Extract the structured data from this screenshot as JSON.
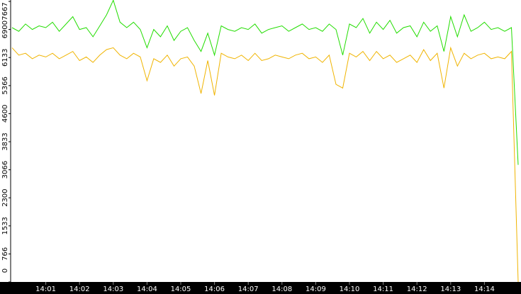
{
  "chart_data": {
    "type": "line",
    "categories": [
      null,
      null,
      null,
      null,
      null,
      "14:01",
      null,
      null,
      null,
      null,
      "14:02",
      null,
      null,
      null,
      null,
      "14:03",
      null,
      null,
      null,
      null,
      "14:04",
      null,
      null,
      null,
      null,
      "14:05",
      null,
      null,
      null,
      null,
      "14:06",
      null,
      null,
      null,
      null,
      "14:07",
      null,
      null,
      null,
      null,
      "14:08",
      null,
      null,
      null,
      null,
      "14:09",
      null,
      null,
      null,
      null,
      "14:10",
      null,
      null,
      null,
      null,
      "14:11",
      null,
      null,
      null,
      null,
      "14:12",
      null,
      null,
      null,
      null,
      "14:13",
      null,
      null,
      null,
      null,
      "14:14",
      null,
      null,
      null,
      null,
      null
    ],
    "series": [
      {
        "color": "#22dd00",
        "values": [
          6950,
          6850,
          7050,
          6900,
          7000,
          6950,
          7100,
          6850,
          7050,
          7250,
          6900,
          6950,
          6700,
          7000,
          7300,
          7700,
          7100,
          6950,
          7100,
          6900,
          6400,
          6900,
          6700,
          7000,
          6600,
          6850,
          6950,
          6600,
          6300,
          6800,
          6200,
          7000,
          6900,
          6850,
          6950,
          6900,
          7050,
          6800,
          6900,
          6950,
          7000,
          6850,
          6950,
          7050,
          6900,
          6950,
          6850,
          7050,
          6900,
          6200,
          7050,
          6950,
          7200,
          6800,
          7100,
          6900,
          7150,
          6800,
          6950,
          7000,
          6700,
          7100,
          6850,
          7000,
          6300,
          7250,
          6700,
          7300,
          6850,
          6950,
          7100,
          6900,
          6950,
          6850,
          6950,
          3200
        ]
      },
      {
        "color": "#f0b400",
        "values": [
          6400,
          6200,
          6250,
          6100,
          6200,
          6150,
          6250,
          6100,
          6200,
          6300,
          6050,
          6150,
          6000,
          6200,
          6350,
          6400,
          6200,
          6100,
          6250,
          6150,
          5500,
          6100,
          6000,
          6200,
          5900,
          6100,
          6150,
          5900,
          5150,
          6050,
          5100,
          6250,
          6150,
          6100,
          6200,
          6050,
          6250,
          6050,
          6100,
          6200,
          6150,
          6100,
          6200,
          6250,
          6100,
          6150,
          6000,
          6200,
          5400,
          5300,
          6250,
          6150,
          6300,
          6050,
          6300,
          6100,
          6200,
          6000,
          6100,
          6200,
          6000,
          6350,
          6050,
          6250,
          5300,
          6400,
          5900,
          6250,
          6100,
          6200,
          6250,
          6100,
          6150,
          6100,
          6300,
          0
        ]
      }
    ],
    "ylim": [
      0,
      7667
    ],
    "yticks": [
      0,
      766,
      1533,
      2300,
      3066,
      3833,
      4600,
      5366,
      6133,
      6900,
      7667
    ]
  }
}
